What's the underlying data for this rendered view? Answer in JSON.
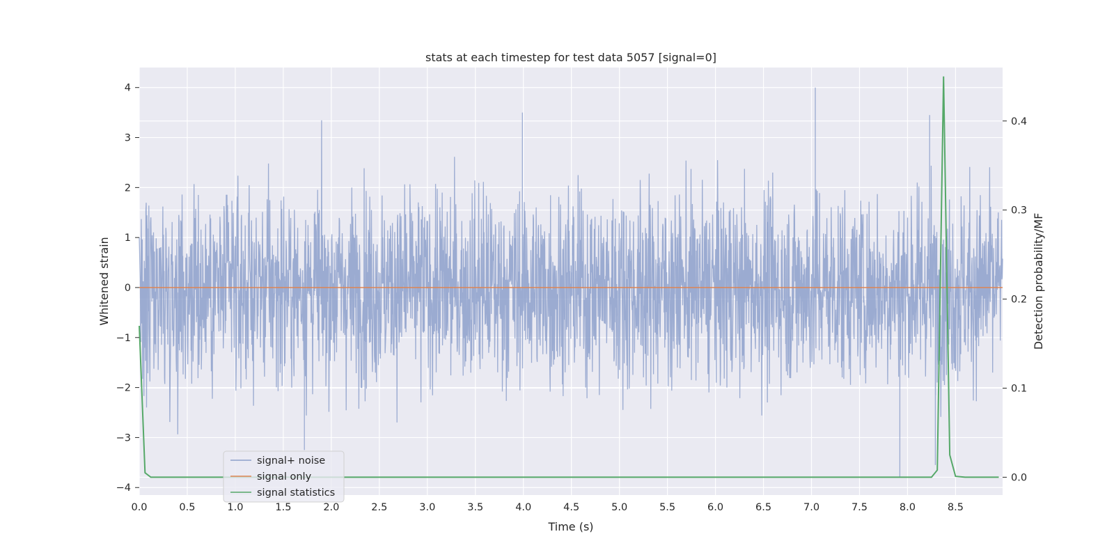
{
  "chart_data": {
    "type": "line",
    "title": "stats at each timestep for test data 5057 [signal=0]",
    "xlabel": "Time (s)",
    "ylabel": "Whitened strain",
    "y2label": "Detection probability/MF",
    "xlim": [
      0.0,
      8.99
    ],
    "ylim": [
      -4.15,
      4.4
    ],
    "y2lim": [
      -0.02,
      0.46
    ],
    "x_ticks": [
      0.0,
      0.5,
      1.0,
      1.5,
      2.0,
      2.5,
      3.0,
      3.5,
      4.0,
      4.5,
      5.0,
      5.5,
      6.0,
      6.5,
      7.0,
      7.5,
      8.0,
      8.5
    ],
    "x_tick_labels": [
      "0.0",
      "0.5",
      "1.0",
      "1.5",
      "2.0",
      "2.5",
      "3.0",
      "3.5",
      "4.0",
      "4.5",
      "5.0",
      "5.5",
      "6.0",
      "6.5",
      "7.0",
      "7.5",
      "8.0",
      "8.5"
    ],
    "y_ticks": [
      -4,
      -3,
      -2,
      -1,
      0,
      1,
      2,
      3,
      4
    ],
    "y_tick_labels": [
      "−4",
      "−3",
      "−2",
      "−1",
      "0",
      "1",
      "2",
      "3",
      "4"
    ],
    "y2_ticks": [
      0.0,
      0.1,
      0.2,
      0.3,
      0.4
    ],
    "y2_tick_labels": [
      "0.0",
      "0.1",
      "0.2",
      "0.3",
      "0.4"
    ],
    "grid": true,
    "legend_position": "bottom-left",
    "series": [
      {
        "name": "signal+ noise",
        "axis": "left",
        "color": "#8da0cb",
        "kind": "whitened noise, ~2048 samples/s",
        "approx_std": 0.95,
        "approx_range": [
          -3.8,
          4.0
        ],
        "notable_peaks": [
          {
            "x": 3.99,
            "y": 3.5
          },
          {
            "x": 7.04,
            "y": 4.0
          },
          {
            "x": 8.23,
            "y": 3.45
          },
          {
            "x": 7.92,
            "y": -3.8
          },
          {
            "x": 8.29,
            "y": -3.55
          },
          {
            "x": 1.72,
            "y": -3.25
          }
        ]
      },
      {
        "name": "signal only",
        "axis": "left",
        "color": "#dd8452",
        "x": [
          0.0,
          8.99
        ],
        "y": [
          0.0,
          0.0
        ]
      },
      {
        "name": "signal statistics",
        "axis": "right",
        "color": "#55a868",
        "x": [
          0.0,
          0.06,
          0.12,
          8.25,
          8.31,
          8.375,
          8.44,
          8.5,
          8.6,
          8.95
        ],
        "y": [
          0.17,
          0.005,
          0.0,
          0.0,
          0.008,
          0.45,
          0.025,
          0.001,
          0.0,
          0.0
        ]
      }
    ]
  }
}
